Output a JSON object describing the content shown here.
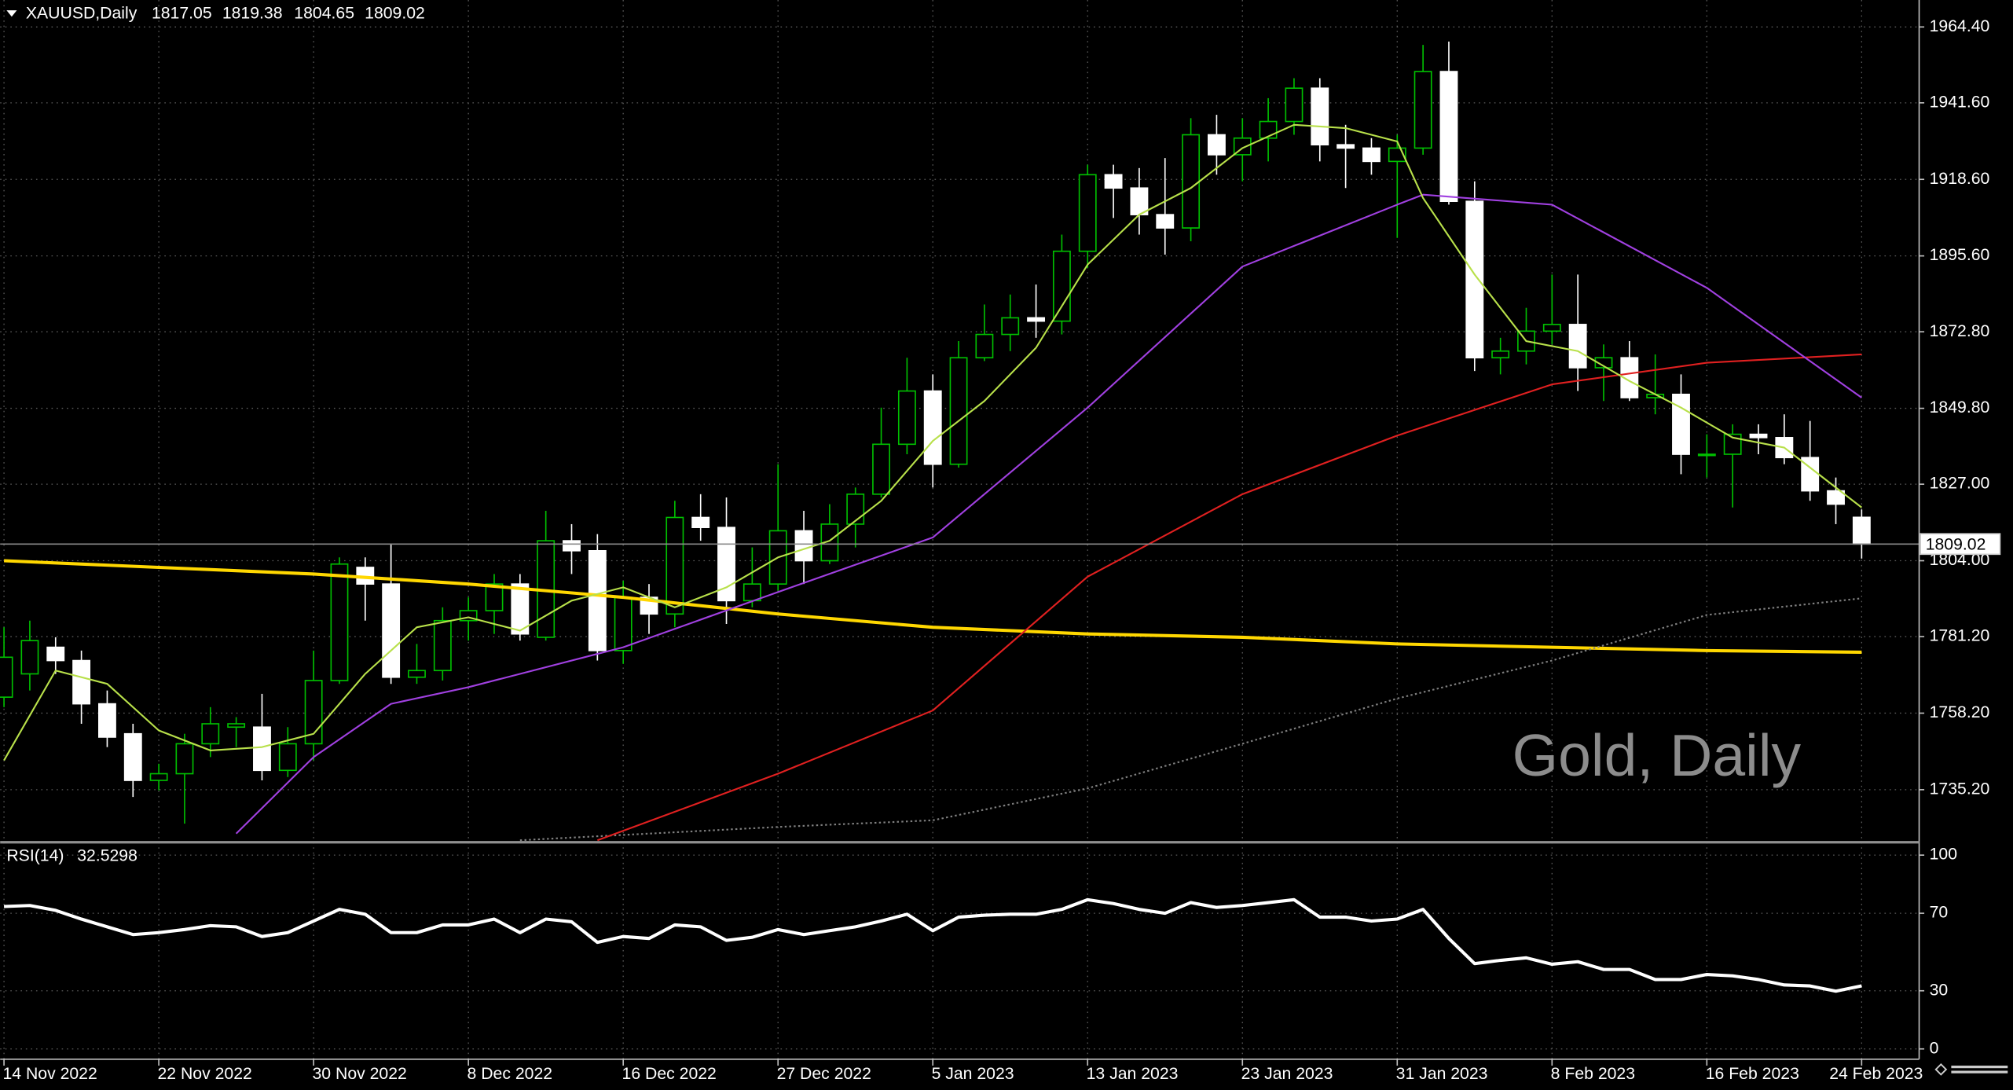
{
  "chart_data": [
    {
      "type": "candlestick",
      "title": "XAUUSD,Daily",
      "annotation": "Gold, Daily",
      "categories": [
        "14 Nov 2022",
        null,
        null,
        null,
        null,
        null,
        "22 Nov 2022",
        null,
        null,
        null,
        null,
        null,
        "30 Nov 2022",
        null,
        null,
        null,
        null,
        null,
        "8 Dec 2022",
        null,
        null,
        null,
        null,
        null,
        "16 Dec 2022",
        null,
        null,
        null,
        null,
        null,
        "27 Dec 2022",
        null,
        null,
        null,
        null,
        null,
        "5 Jan 2023",
        null,
        null,
        null,
        null,
        null,
        "13 Jan 2023",
        null,
        null,
        null,
        null,
        null,
        "23 Jan 2023",
        null,
        null,
        null,
        null,
        null,
        "31 Jan 2023",
        null,
        null,
        null,
        null,
        null,
        "8 Feb 2023",
        null,
        null,
        null,
        null,
        null,
        "16 Feb 2023",
        null,
        null,
        null,
        null,
        null,
        "24 Feb 2023"
      ],
      "open": [
        1763,
        1770,
        1778,
        1774,
        1761,
        1752,
        1738,
        1740,
        1749,
        1754,
        1754,
        1741,
        1749,
        1768,
        1802,
        1797,
        1769,
        1771,
        1786,
        1789,
        1797,
        1781,
        1810,
        1807,
        1777,
        1793,
        1788,
        1817,
        1814,
        1792,
        1797,
        1813,
        1804,
        1815,
        1824,
        1839,
        1855,
        1833,
        1865,
        1872,
        1877,
        1876,
        1897,
        1920,
        1916,
        1908,
        1904,
        1932,
        1926,
        1931,
        1936,
        1946,
        1929,
        1928,
        1924,
        1928,
        1951,
        1912,
        1865,
        1867,
        1873,
        1875,
        1862,
        1865,
        1853,
        1854,
        1836,
        1836,
        1842,
        1841,
        1835,
        1825,
        1817.05
      ],
      "high": [
        1784,
        1786,
        1781,
        1777,
        1765,
        1755,
        1743,
        1752,
        1760,
        1757,
        1764,
        1754,
        1777,
        1805,
        1805,
        1809,
        1779,
        1790,
        1793,
        1800,
        1800,
        1819,
        1815,
        1812,
        1798,
        1797,
        1822,
        1824,
        1823,
        1808,
        1833,
        1819,
        1821,
        1826,
        1850,
        1865,
        1860,
        1870,
        1881,
        1884,
        1887,
        1902,
        1923,
        1923,
        1922,
        1925,
        1937,
        1938,
        1937,
        1943,
        1949,
        1949,
        1935,
        1931,
        1932,
        1959,
        1960,
        1918,
        1871,
        1880,
        1890,
        1890,
        1869,
        1870,
        1866,
        1860,
        1842,
        1845,
        1845,
        1848,
        1846,
        1829,
        1819.38
      ],
      "low": [
        1760,
        1765,
        1770,
        1755,
        1748,
        1733,
        1735,
        1725,
        1745,
        1748,
        1738,
        1739,
        1744,
        1767,
        1786,
        1767,
        1767,
        1768,
        1780,
        1782,
        1780,
        1780,
        1800,
        1774,
        1773,
        1782,
        1784,
        1810,
        1785,
        1790,
        1795,
        1797,
        1803,
        1808,
        1823,
        1836,
        1826,
        1832,
        1864,
        1867,
        1871,
        1872,
        1892,
        1907,
        1902,
        1896,
        1900,
        1920,
        1918,
        1924,
        1932,
        1924,
        1916,
        1920,
        1901,
        1926,
        1911,
        1861,
        1860,
        1863,
        1869,
        1855,
        1852,
        1852,
        1848,
        1830,
        1829,
        1820,
        1836,
        1833,
        1822,
        1815,
        1804.65
      ],
      "close": [
        1775,
        1780,
        1774,
        1761,
        1751,
        1738,
        1740,
        1749,
        1755,
        1755,
        1741,
        1749,
        1768,
        1803,
        1797,
        1769,
        1771,
        1786,
        1789,
        1797,
        1782,
        1810,
        1807,
        1777,
        1793,
        1788,
        1817,
        1814,
        1792,
        1797,
        1813,
        1804,
        1815,
        1824,
        1839,
        1855,
        1833,
        1865,
        1872,
        1877,
        1876,
        1897,
        1920,
        1916,
        1908,
        1904,
        1932,
        1926,
        1931,
        1936,
        1946,
        1929,
        1928,
        1924,
        1928,
        1951,
        1912,
        1865,
        1867,
        1873,
        1875,
        1862,
        1865,
        1853,
        1854,
        1836,
        1836,
        1842,
        1841,
        1835,
        1825,
        1821,
        1809.02
      ],
      "bull_color": "#00c000",
      "bear_color": "#ffffff",
      "overlays": [
        {
          "color": "#ffd700",
          "line_width": 2.5,
          "x": [
            0,
            6,
            12,
            18,
            24,
            30,
            36,
            42,
            48,
            54,
            60,
            66,
            72
          ],
          "values": [
            1804,
            1802,
            1800,
            1797,
            1793,
            1788,
            1784,
            1782,
            1781,
            1779,
            1778,
            1777,
            1776.5
          ]
        },
        {
          "color": "#808080",
          "style": "dotted",
          "x": [
            20,
            30,
            36,
            42,
            48,
            54,
            60,
            66,
            72
          ],
          "values": [
            1720,
            1724,
            1726,
            1735.6,
            1749,
            1762.6,
            1774,
            1787.7,
            1792.7
          ]
        },
        {
          "color": "#e02020",
          "x": [
            23,
            30,
            36,
            42,
            48,
            54,
            60,
            66,
            72
          ],
          "values": [
            1720,
            1740,
            1759,
            1799.2,
            1824,
            1841.6,
            1857,
            1863.5,
            1866
          ]
        },
        {
          "color": "#a040e0",
          "x": [
            9,
            12,
            15,
            18,
            24,
            30,
            36,
            42,
            48,
            54,
            55,
            60,
            66,
            72
          ],
          "values": [
            1722,
            1745,
            1761,
            1766,
            1778,
            1794.6,
            1811,
            1850,
            1892.4,
            1911,
            1914,
            1911,
            1886,
            1853
          ]
        },
        {
          "color": "#b8e04a",
          "x": [
            0,
            2,
            4,
            6,
            8,
            10,
            12,
            14,
            16,
            18,
            20,
            22,
            24,
            26,
            28,
            30,
            32,
            34,
            36,
            38,
            40,
            42,
            44,
            46,
            48,
            50,
            52,
            54,
            55,
            57,
            59,
            61,
            63,
            65,
            67,
            69,
            71,
            72
          ],
          "values": [
            1744,
            1771,
            1767,
            1753,
            1747,
            1748,
            1752,
            1770,
            1784,
            1787,
            1783,
            1792,
            1796,
            1790,
            1796,
            1805,
            1810,
            1822,
            1840,
            1852,
            1868,
            1893,
            1908,
            1916,
            1928,
            1935,
            1934,
            1930,
            1913,
            1890,
            1870,
            1867,
            1858,
            1850,
            1841,
            1838,
            1826,
            1820
          ]
        }
      ],
      "ylim": [
        1719.8,
        1972.5
      ],
      "yticks": [
        {
          "value": 1735.2,
          "label": "1735.20"
        },
        {
          "value": 1758.2,
          "label": "1758.20"
        },
        {
          "value": 1781.2,
          "label": "1781.20"
        },
        {
          "value": 1804,
          "label": "1804.00"
        },
        {
          "value": 1827,
          "label": "1827.00"
        },
        {
          "value": 1849.8,
          "label": "1849.80"
        },
        {
          "value": 1872.8,
          "label": "1872.80"
        },
        {
          "value": 1895.6,
          "label": "1895.60"
        },
        {
          "value": 1918.6,
          "label": "1918.60"
        },
        {
          "value": 1941.6,
          "label": "1941.60"
        },
        {
          "value": 1964.4,
          "label": "1964.40"
        }
      ],
      "grid": true
    },
    {
      "type": "line",
      "title": "RSI(14)",
      "color": "#ffffff",
      "values": [
        73.5,
        74,
        71.5,
        67,
        63,
        59,
        60,
        61.6,
        63.6,
        63,
        58,
        60,
        66,
        72,
        69.5,
        60,
        60,
        64,
        64,
        67,
        60,
        67,
        65.6,
        55,
        58,
        57,
        64,
        63,
        56,
        57.6,
        61.6,
        59,
        61,
        63,
        66,
        69.5,
        61,
        68,
        69,
        69.5,
        69.5,
        72,
        77,
        75,
        72,
        70,
        75.5,
        73,
        74,
        75.5,
        77,
        68,
        68,
        66,
        67,
        72,
        57,
        44,
        45.7,
        47,
        43.7,
        45,
        41,
        41,
        35.8,
        35.8,
        38.4,
        37.7,
        35.8,
        33,
        32.5,
        29.8,
        32.5298
      ],
      "ylim": [
        -5.3,
        106
      ],
      "yticks": [
        0,
        30,
        70,
        100
      ],
      "grid": true
    }
  ]
}
